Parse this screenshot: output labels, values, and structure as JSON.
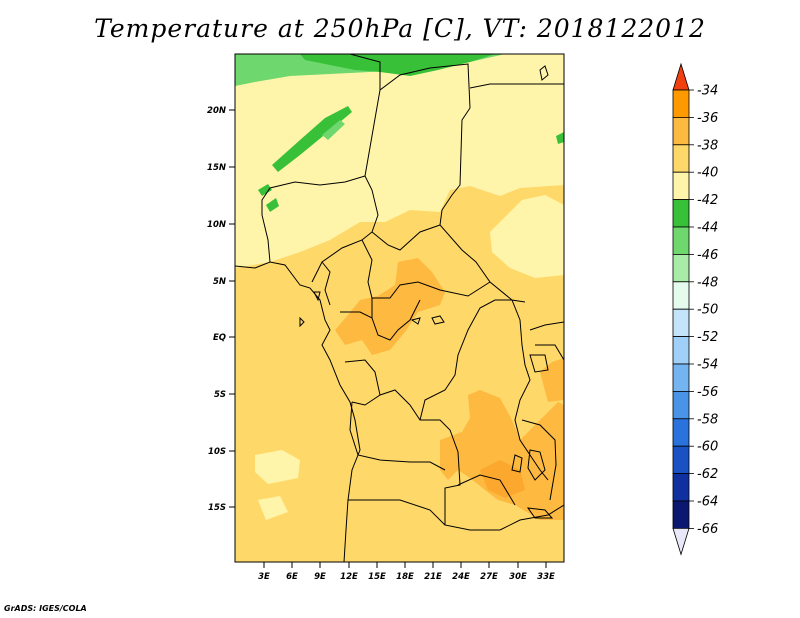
{
  "title": "Temperature at 250hPa [C], VT: 2018122012",
  "credit": "GrADS: IGES/COLA",
  "map": {
    "lat_ticks": [
      "20N",
      "15N",
      "10N",
      "5N",
      "EQ",
      "5S",
      "10S",
      "15S"
    ],
    "lon_ticks": [
      "3E",
      "6E",
      "9E",
      "12E",
      "15E",
      "18E",
      "21E",
      "24E",
      "27E",
      "30E",
      "33E"
    ]
  },
  "colorbar": {
    "labels": [
      "-34",
      "-36",
      "-38",
      "-40",
      "-42",
      "-44",
      "-46",
      "-48",
      "-50",
      "-52",
      "-54",
      "-56",
      "-58",
      "-60",
      "-62",
      "-64",
      "-66"
    ],
    "colors": [
      "#ff6a00",
      "#ff9900",
      "#fdb940",
      "#fed96a",
      "#fff5aa",
      "#38c038",
      "#6ed86e",
      "#a8eca8",
      "#e4fbee",
      "#c4e4fa",
      "#a0d0f8",
      "#74b4f0",
      "#4a94e8",
      "#2a72dc",
      "#1a52c4",
      "#1030a0",
      "#0a1870"
    ],
    "top_arrow_color": "#f04010",
    "bottom_arrow_color": "#e8e8f8"
  },
  "palette": {
    "pale_yellow": "#fff5aa",
    "light_orange": "#fed96a",
    "orange": "#fdb940",
    "green_light": "#6ed86e",
    "green_dark": "#38c038"
  }
}
